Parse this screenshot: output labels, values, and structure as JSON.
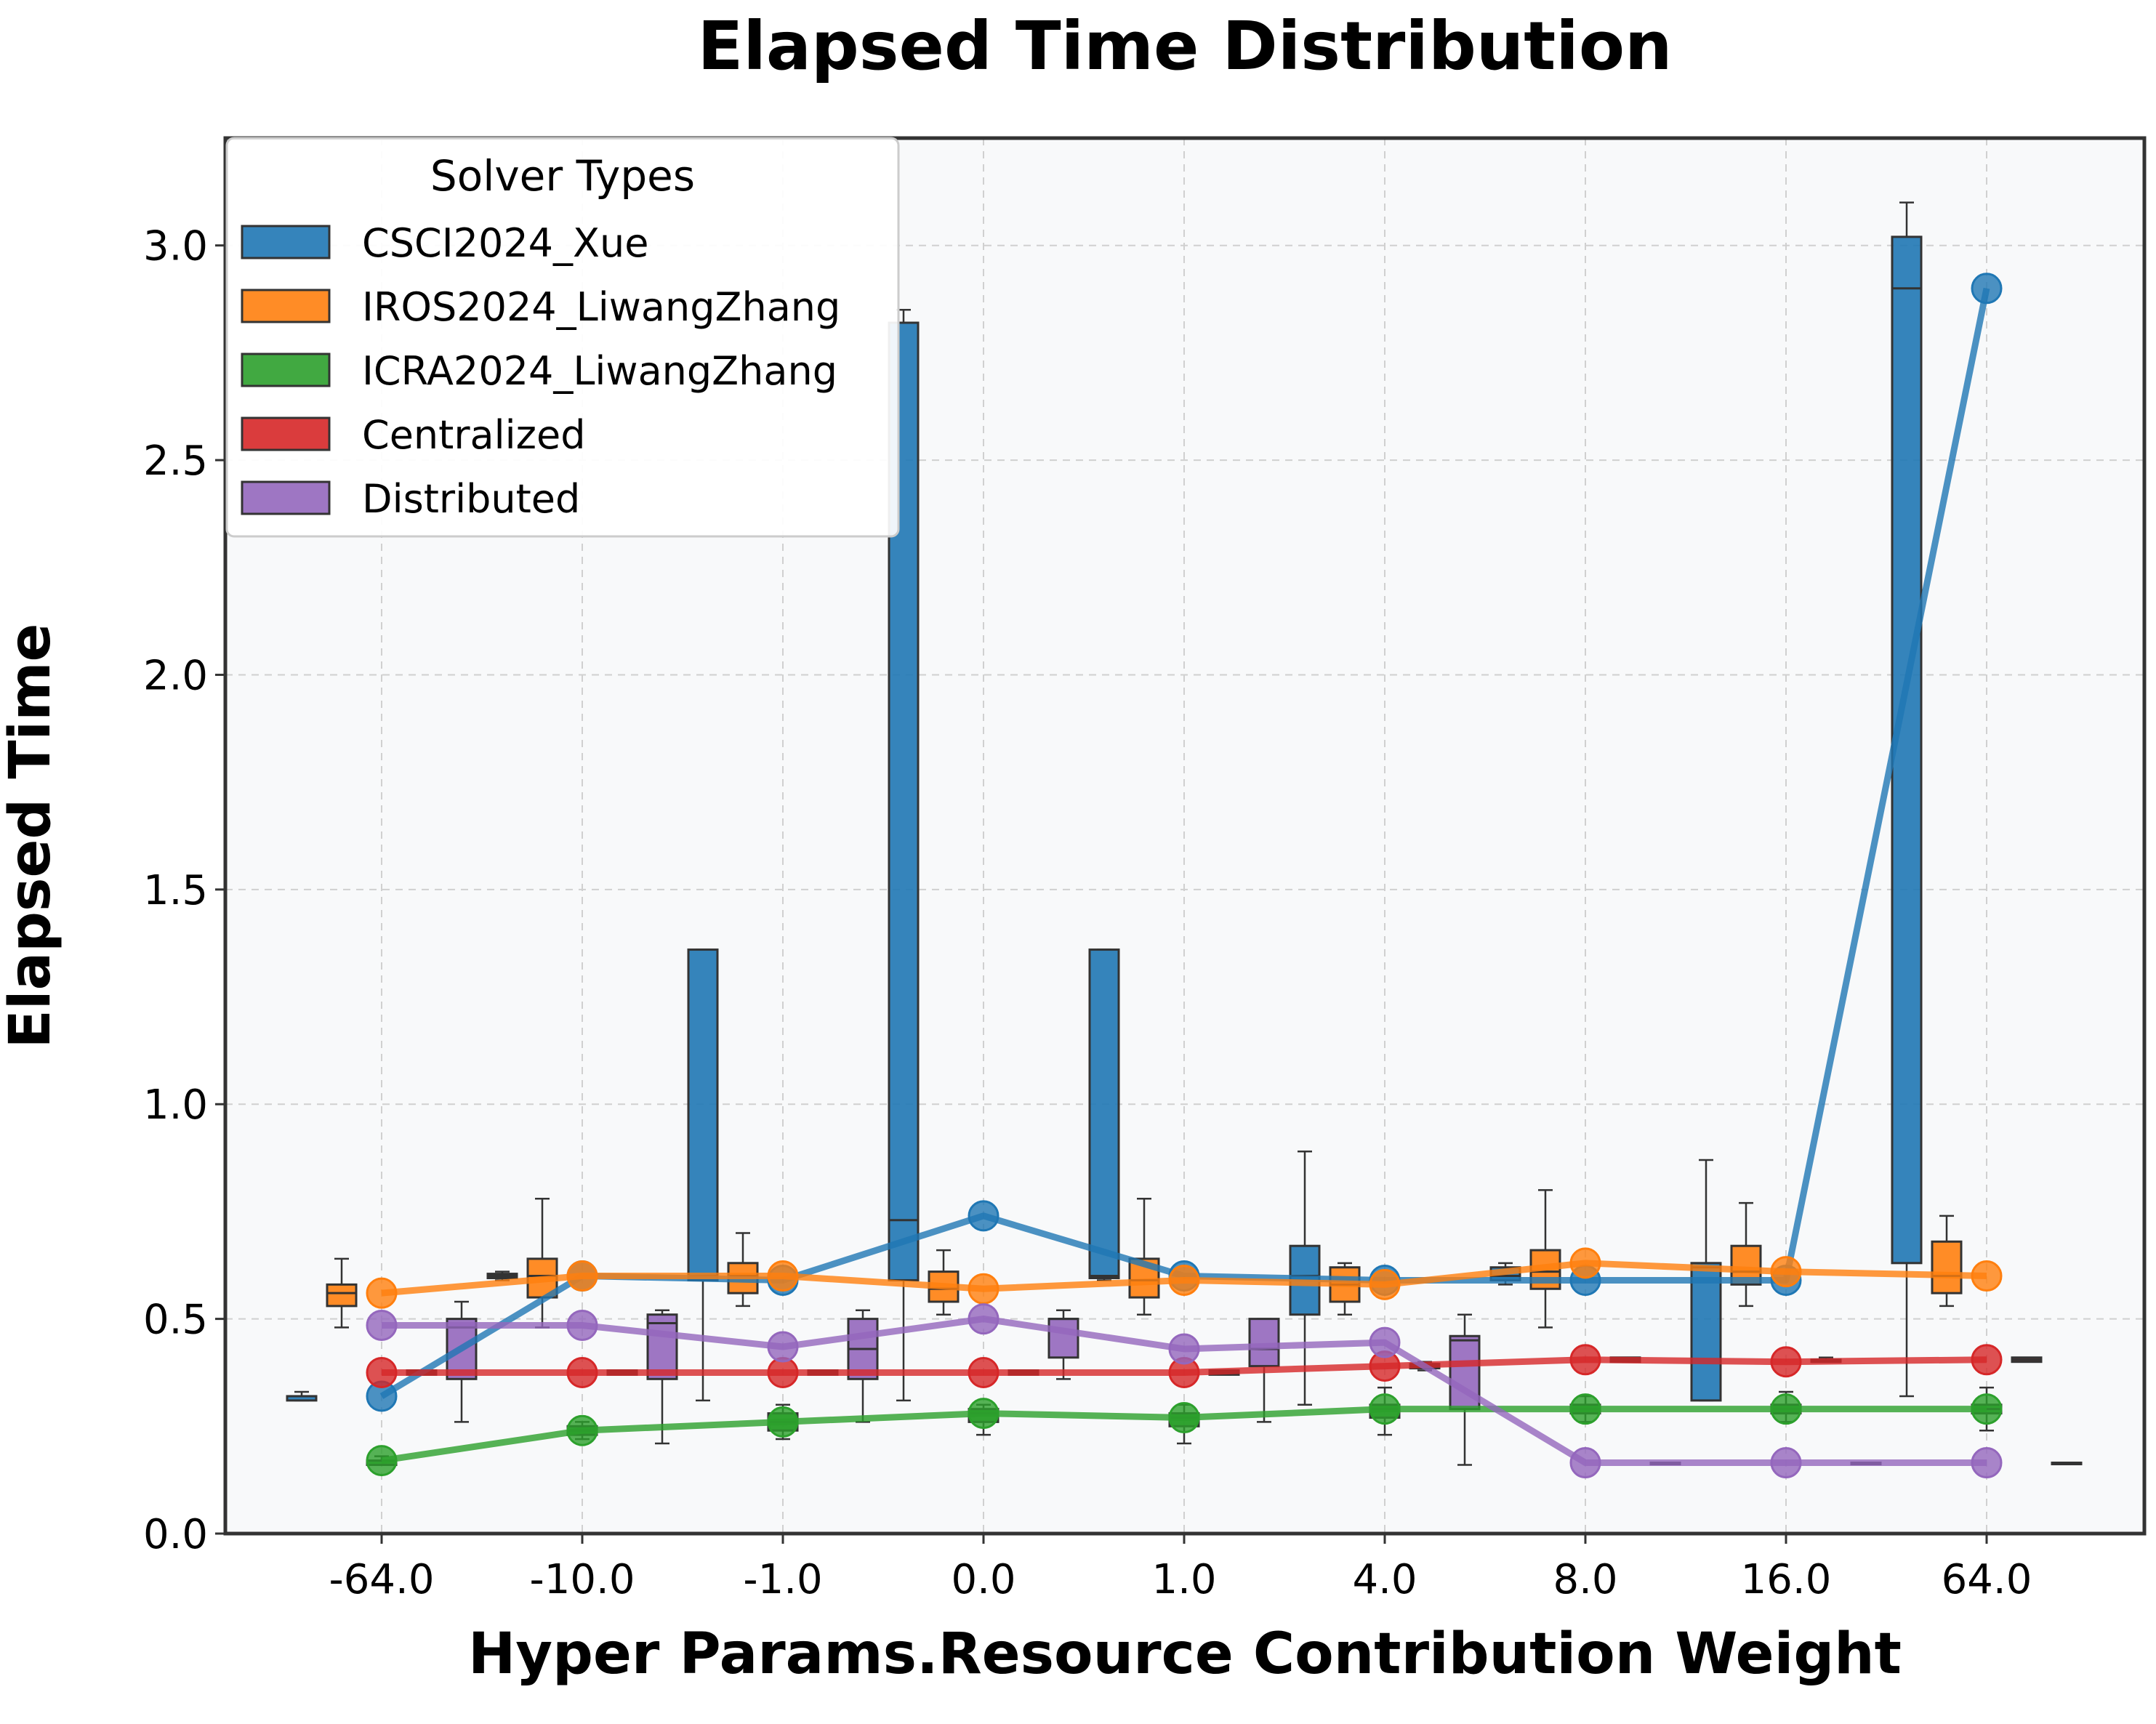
{
  "chart_data": {
    "type": "box",
    "title": "Elapsed Time Distribution",
    "xlabel": "Hyper Params.Resource Contribution Weight",
    "ylabel": "Elapsed Time",
    "categories": [
      "-64.0",
      "-10.0",
      "-1.0",
      "0.0",
      "1.0",
      "4.0",
      "8.0",
      "16.0",
      "64.0"
    ],
    "ylim": [
      0,
      3.25
    ],
    "yticks": [
      "0.0",
      "0.5",
      "1.0",
      "1.5",
      "2.0",
      "2.5",
      "3.0"
    ],
    "grid": true,
    "legend": {
      "title": "Solver Types",
      "placement": "top-left"
    },
    "series": [
      {
        "name": "CSCI2024_Xue",
        "color": "#1f77b4",
        "boxes": [
          {
            "min": 0.31,
            "q1": 0.31,
            "median": 0.32,
            "q3": 0.32,
            "max": 0.33
          },
          {
            "min": 0.59,
            "q1": 0.595,
            "median": 0.6,
            "q3": 0.605,
            "max": 0.61
          },
          {
            "min": 0.31,
            "q1": 0.59,
            "median": 0.6,
            "q3": 1.36,
            "max": 1.36
          },
          {
            "min": 0.31,
            "q1": 0.59,
            "median": 0.73,
            "q3": 2.82,
            "max": 2.85
          },
          {
            "min": 0.59,
            "q1": 0.595,
            "median": 0.6,
            "q3": 1.36,
            "max": 1.36
          },
          {
            "min": 0.3,
            "q1": 0.51,
            "median": 0.6,
            "q3": 0.67,
            "max": 0.89
          },
          {
            "min": 0.58,
            "q1": 0.59,
            "median": 0.6,
            "q3": 0.62,
            "max": 0.63
          },
          {
            "min": 0.31,
            "q1": 0.31,
            "median": 0.62,
            "q3": 0.63,
            "max": 0.87
          },
          {
            "min": 0.32,
            "q1": 0.63,
            "median": 2.9,
            "q3": 3.02,
            "max": 3.1
          }
        ],
        "means": [
          0.32,
          0.6,
          0.59,
          0.74,
          0.6,
          0.59,
          0.59,
          0.59,
          2.9
        ]
      },
      {
        "name": "IROS2024_LiwangZhang",
        "color": "#ff7f0e",
        "boxes": [
          {
            "min": 0.48,
            "q1": 0.53,
            "median": 0.56,
            "q3": 0.58,
            "max": 0.64
          },
          {
            "min": 0.48,
            "q1": 0.55,
            "median": 0.6,
            "q3": 0.64,
            "max": 0.78
          },
          {
            "min": 0.53,
            "q1": 0.56,
            "median": 0.6,
            "q3": 0.63,
            "max": 0.7
          },
          {
            "min": 0.51,
            "q1": 0.54,
            "median": 0.57,
            "q3": 0.61,
            "max": 0.66
          },
          {
            "min": 0.51,
            "q1": 0.55,
            "median": 0.59,
            "q3": 0.64,
            "max": 0.78
          },
          {
            "min": 0.51,
            "q1": 0.54,
            "median": 0.58,
            "q3": 0.62,
            "max": 0.63
          },
          {
            "min": 0.48,
            "q1": 0.57,
            "median": 0.61,
            "q3": 0.66,
            "max": 0.8
          },
          {
            "min": 0.53,
            "q1": 0.58,
            "median": 0.61,
            "q3": 0.67,
            "max": 0.77
          },
          {
            "min": 0.53,
            "q1": 0.56,
            "median": 0.6,
            "q3": 0.68,
            "max": 0.74
          }
        ],
        "means": [
          0.56,
          0.6,
          0.6,
          0.57,
          0.59,
          0.58,
          0.63,
          0.61,
          0.6
        ]
      },
      {
        "name": "ICRA2024_LiwangZhang",
        "color": "#2ca02c",
        "boxes": [
          {
            "min": 0.16,
            "q1": 0.16,
            "median": 0.17,
            "q3": 0.17,
            "max": 0.18
          },
          {
            "min": 0.22,
            "q1": 0.23,
            "median": 0.24,
            "q3": 0.25,
            "max": 0.26
          },
          {
            "min": 0.22,
            "q1": 0.24,
            "median": 0.26,
            "q3": 0.28,
            "max": 0.3
          },
          {
            "min": 0.23,
            "q1": 0.26,
            "median": 0.28,
            "q3": 0.29,
            "max": 0.3
          },
          {
            "min": 0.21,
            "q1": 0.25,
            "median": 0.27,
            "q3": 0.28,
            "max": 0.3
          },
          {
            "min": 0.23,
            "q1": 0.27,
            "median": 0.29,
            "q3": 0.3,
            "max": 0.34
          },
          {
            "min": 0.26,
            "q1": 0.28,
            "median": 0.29,
            "q3": 0.3,
            "max": 0.32
          },
          {
            "min": 0.26,
            "q1": 0.28,
            "median": 0.29,
            "q3": 0.3,
            "max": 0.33
          },
          {
            "min": 0.24,
            "q1": 0.28,
            "median": 0.29,
            "q3": 0.3,
            "max": 0.34
          }
        ],
        "means": [
          0.17,
          0.24,
          0.26,
          0.28,
          0.27,
          0.29,
          0.29,
          0.29,
          0.29
        ]
      },
      {
        "name": "Centralized",
        "color": "#d62728",
        "boxes": [
          {
            "min": 0.37,
            "q1": 0.37,
            "median": 0.375,
            "q3": 0.38,
            "max": 0.38
          },
          {
            "min": 0.37,
            "q1": 0.37,
            "median": 0.375,
            "q3": 0.38,
            "max": 0.38
          },
          {
            "min": 0.37,
            "q1": 0.37,
            "median": 0.375,
            "q3": 0.38,
            "max": 0.38
          },
          {
            "min": 0.37,
            "q1": 0.37,
            "median": 0.375,
            "q3": 0.38,
            "max": 0.38
          },
          {
            "min": 0.37,
            "q1": 0.37,
            "median": 0.375,
            "q3": 0.38,
            "max": 0.38
          },
          {
            "min": 0.38,
            "q1": 0.385,
            "median": 0.39,
            "q3": 0.395,
            "max": 0.4
          },
          {
            "min": 0.4,
            "q1": 0.4,
            "median": 0.405,
            "q3": 0.41,
            "max": 0.41
          },
          {
            "min": 0.4,
            "q1": 0.4,
            "median": 0.4,
            "q3": 0.405,
            "max": 0.41
          },
          {
            "min": 0.4,
            "q1": 0.4,
            "median": 0.405,
            "q3": 0.41,
            "max": 0.41
          }
        ],
        "means": [
          0.375,
          0.375,
          0.375,
          0.375,
          0.375,
          0.39,
          0.405,
          0.4,
          0.405
        ]
      },
      {
        "name": "Distributed",
        "color": "#9467bd",
        "boxes": [
          {
            "min": 0.26,
            "q1": 0.36,
            "median": 0.48,
            "q3": 0.5,
            "max": 0.54
          },
          {
            "min": 0.21,
            "q1": 0.36,
            "median": 0.49,
            "q3": 0.51,
            "max": 0.52
          },
          {
            "min": 0.26,
            "q1": 0.36,
            "median": 0.43,
            "q3": 0.5,
            "max": 0.52
          },
          {
            "min": 0.36,
            "q1": 0.41,
            "median": 0.5,
            "q3": 0.5,
            "max": 0.52
          },
          {
            "min": 0.26,
            "q1": 0.39,
            "median": 0.43,
            "q3": 0.5,
            "max": 0.5
          },
          {
            "min": 0.16,
            "q1": 0.29,
            "median": 0.45,
            "q3": 0.46,
            "max": 0.51
          },
          {
            "min": 0.165,
            "q1": 0.165,
            "median": 0.165,
            "q3": 0.165,
            "max": 0.165
          },
          {
            "min": 0.165,
            "q1": 0.165,
            "median": 0.165,
            "q3": 0.165,
            "max": 0.165
          },
          {
            "min": 0.165,
            "q1": 0.165,
            "median": 0.165,
            "q3": 0.165,
            "max": 0.165
          }
        ],
        "means": [
          0.485,
          0.485,
          0.435,
          0.5,
          0.43,
          0.445,
          0.165,
          0.165,
          0.165
        ]
      }
    ]
  }
}
